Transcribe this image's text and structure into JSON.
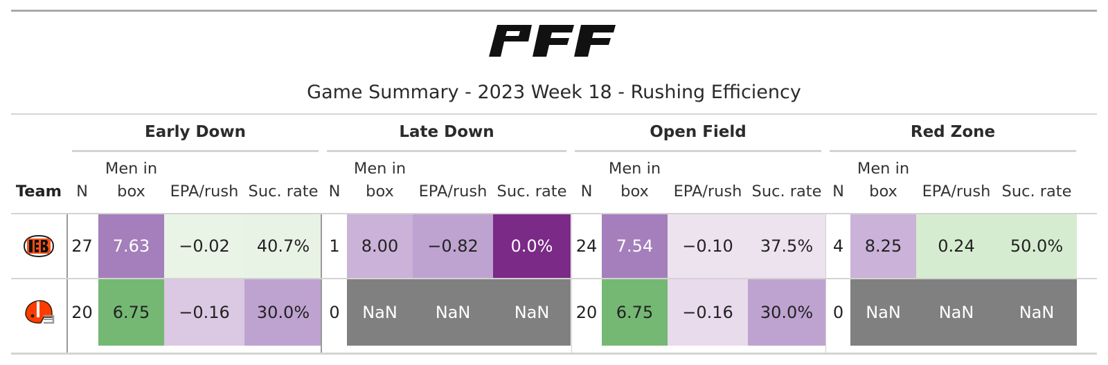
{
  "brand": {
    "logo_text": "PFF"
  },
  "title": "Game Summary - 2023 Week 18 - Rushing Efficiency",
  "groups": [
    {
      "label": "Early Down"
    },
    {
      "label": "Late Down"
    },
    {
      "label": "Open Field"
    },
    {
      "label": "Red Zone"
    }
  ],
  "columns": {
    "team": "Team",
    "n": "N",
    "box_line1": "Men in",
    "box_line2": "box",
    "epa": "EPA/rush",
    "suc": "Suc. rate"
  },
  "rows": [
    {
      "team_icon": "bengals-logo-icon",
      "cells": [
        {
          "text": "27",
          "bg": "#ffffff",
          "light": false
        },
        {
          "text": "7.63",
          "bg": "#a47fbb",
          "light": true
        },
        {
          "text": "−0.02",
          "bg": "#e9f3e6",
          "light": false
        },
        {
          "text": "40.7%",
          "bg": "#e8f3e5",
          "light": false
        },
        {
          "text": "1",
          "bg": "#ffffff",
          "light": false
        },
        {
          "text": "8.00",
          "bg": "#cbb2d8",
          "light": false
        },
        {
          "text": "−0.82",
          "bg": "#bea3d0",
          "light": false
        },
        {
          "text": "0.0%",
          "bg": "#7b2a87",
          "light": true
        },
        {
          "text": "24",
          "bg": "#ffffff",
          "light": false
        },
        {
          "text": "7.54",
          "bg": "#a47fbb",
          "light": true
        },
        {
          "text": "−0.10",
          "bg": "#ece3ef",
          "light": false
        },
        {
          "text": "37.5%",
          "bg": "#ece3ef",
          "light": false
        },
        {
          "text": "4",
          "bg": "#ffffff",
          "light": false
        },
        {
          "text": "8.25",
          "bg": "#cbb2d8",
          "light": false
        },
        {
          "text": "0.24",
          "bg": "#d6ecd0",
          "light": false
        },
        {
          "text": "50.0%",
          "bg": "#d6ecd0",
          "light": false
        }
      ]
    },
    {
      "team_icon": "browns-helmet-icon",
      "cells": [
        {
          "text": "20",
          "bg": "#ffffff",
          "light": false
        },
        {
          "text": "6.75",
          "bg": "#74b874",
          "light": false
        },
        {
          "text": "−0.16",
          "bg": "#dbc8e2",
          "light": false
        },
        {
          "text": "30.0%",
          "bg": "#bea3d0",
          "light": false
        },
        {
          "text": "0",
          "bg": "#ffffff",
          "light": false
        },
        {
          "text": "NaN",
          "bg": "#808080",
          "light": true
        },
        {
          "text": "NaN",
          "bg": "#808080",
          "light": true
        },
        {
          "text": "NaN",
          "bg": "#808080",
          "light": true
        },
        {
          "text": "20",
          "bg": "#ffffff",
          "light": false
        },
        {
          "text": "6.75",
          "bg": "#74b874",
          "light": false
        },
        {
          "text": "−0.16",
          "bg": "#e8dbec",
          "light": false
        },
        {
          "text": "30.0%",
          "bg": "#bea3d0",
          "light": false
        },
        {
          "text": "0",
          "bg": "#ffffff",
          "light": false
        },
        {
          "text": "NaN",
          "bg": "#808080",
          "light": true
        },
        {
          "text": "NaN",
          "bg": "#808080",
          "light": true
        },
        {
          "text": "NaN",
          "bg": "#808080",
          "light": true
        }
      ]
    }
  ]
}
